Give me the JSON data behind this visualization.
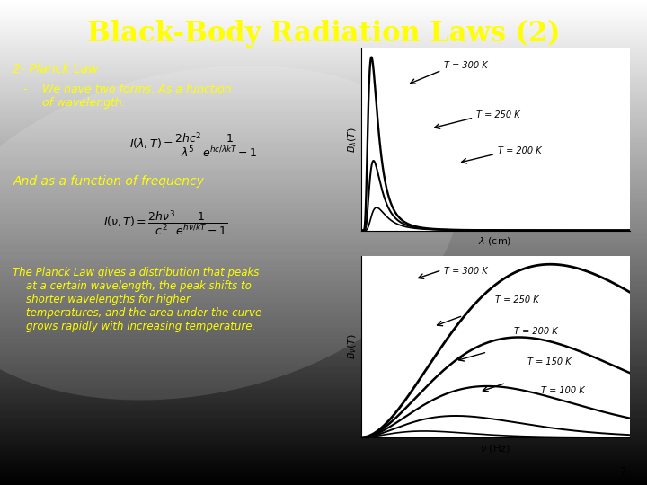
{
  "title": "Black-Body Radiation Laws (2)",
  "title_color": "#FFFF00",
  "title_fontsize": 22,
  "text_color": "#FFFF00",
  "slide_number": "7",
  "heading": "2- Planck Law",
  "bullet_dash": "-",
  "bullet_text": "We have two forms. As a function\nof wavelength.",
  "freq_text": "And as a function of frequency",
  "planck_text": "The Planck Law gives a distribution that peaks\n    at a certain wavelength, the peak shifts to\n    shorter wavelengths for higher\n    temperatures, and the area under the curve\n    grows rapidly with increasing temperature.",
  "graph1_labels": [
    "T = 300 K",
    "T = 250 K",
    "T = 200 K"
  ],
  "graph1_xlabel": "lam_cm",
  "graph1_ylabel": "B_lam",
  "graph2_labels": [
    "T = 300 K",
    "T = 250 K",
    "T = 200 K",
    "T = 150 K",
    "T = 100 K"
  ],
  "graph2_xlabel": "nu_Hz",
  "graph2_ylabel": "B_nu",
  "temps1": [
    300,
    250,
    200
  ],
  "temps2": [
    300,
    250,
    200,
    150,
    100
  ]
}
